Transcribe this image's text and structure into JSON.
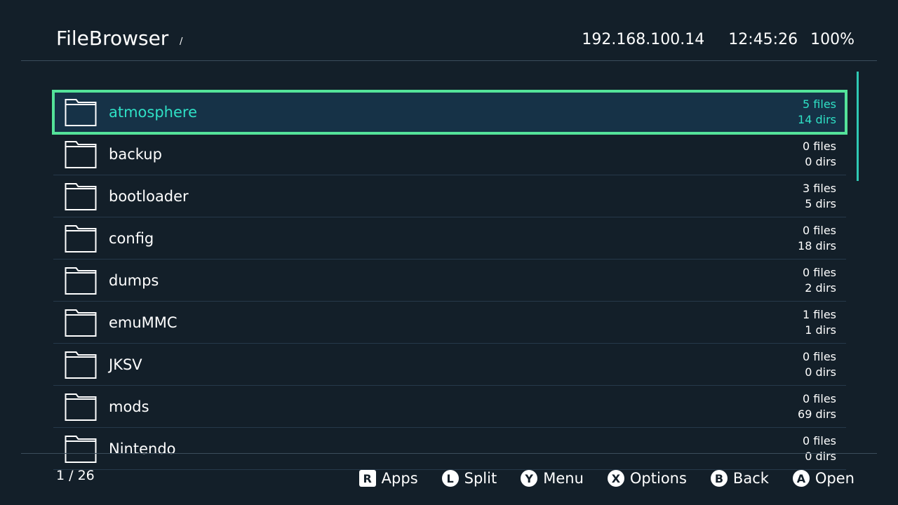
{
  "header": {
    "title": "FileBrowser",
    "path": "/",
    "ip": "192.168.100.14",
    "time": "12:45:26",
    "battery": "100%"
  },
  "list": {
    "selected_index": 0,
    "items": [
      {
        "name": "atmosphere",
        "files": "5 files",
        "dirs": "14 dirs"
      },
      {
        "name": "backup",
        "files": "0 files",
        "dirs": "0 dirs"
      },
      {
        "name": "bootloader",
        "files": "3 files",
        "dirs": "5 dirs"
      },
      {
        "name": "config",
        "files": "0 files",
        "dirs": "18 dirs"
      },
      {
        "name": "dumps",
        "files": "0 files",
        "dirs": "2 dirs"
      },
      {
        "name": "emuMMC",
        "files": "1 files",
        "dirs": "1 dirs"
      },
      {
        "name": "JKSV",
        "files": "0 files",
        "dirs": "0 dirs"
      },
      {
        "name": "mods",
        "files": "0 files",
        "dirs": "69 dirs"
      },
      {
        "name": "Nintendo",
        "files": "0 files",
        "dirs": "0 dirs"
      }
    ]
  },
  "footer": {
    "position": "1 / 26",
    "buttons": [
      {
        "key": "R",
        "label": "Apps"
      },
      {
        "key": "L",
        "label": "Split"
      },
      {
        "key": "Y",
        "label": "Menu"
      },
      {
        "key": "X",
        "label": "Options"
      },
      {
        "key": "B",
        "label": "Back"
      },
      {
        "key": "A",
        "label": "Open"
      }
    ]
  },
  "colors": {
    "accent": "#2fe0c5",
    "highlight_border": "#54e39a",
    "background": "#131f29"
  }
}
